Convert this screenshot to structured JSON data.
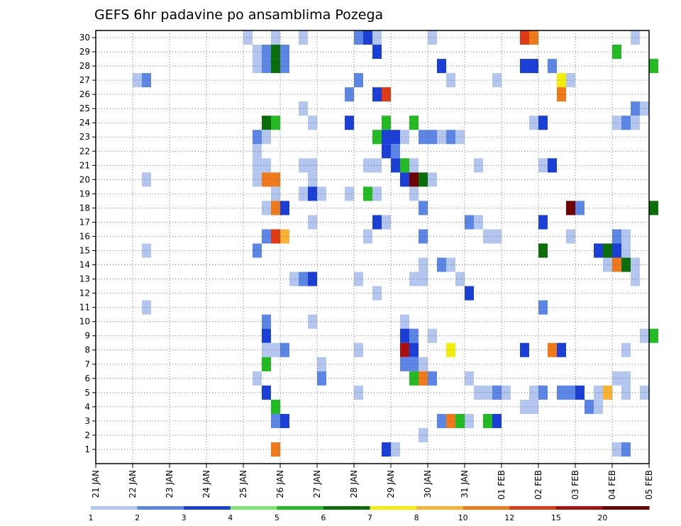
{
  "chart_data": {
    "type": "heatmap",
    "title": "GEFS 6hr padavine po ansamblima Pozega",
    "xlabel": "",
    "ylabel": "",
    "x_ticks": [
      "21 JAN",
      "22 JAN",
      "23 JAN",
      "24 JAN",
      "25 JAN",
      "26 JAN",
      "27 JAN",
      "28 JAN",
      "29 JAN",
      "30 JAN",
      "31 JAN",
      "01 FEB",
      "02 FEB",
      "03 FEB",
      "04 FEB",
      "05 FEB"
    ],
    "y_ticks": [
      "1",
      "2",
      "3",
      "4",
      "5",
      "6",
      "7",
      "8",
      "9",
      "10",
      "11",
      "12",
      "13",
      "14",
      "15",
      "16",
      "17",
      "18",
      "19",
      "20",
      "21",
      "22",
      "23",
      "24",
      "25",
      "26",
      "27",
      "28",
      "29",
      "30"
    ],
    "x_range": [
      "21 JAN 00Z",
      "05 FEB 00Z"
    ],
    "time_step_hours": 6,
    "y_range": [
      0,
      30
    ],
    "grid": true,
    "colorbar": {
      "labels": [
        "1",
        "2",
        "3",
        "4",
        "5",
        "6",
        "7",
        "8",
        "10",
        "12",
        "15",
        "20"
      ],
      "colors": [
        "#b3c6f0",
        "#5c86e6",
        "#1a3fd6",
        "#7de870",
        "#22bb22",
        "#0a6e0a",
        "#f2ee0a",
        "#f9b234",
        "#f07a1a",
        "#e03a14",
        "#a80f0f",
        "#6e0000"
      ]
    },
    "cells": [
      [
        30,
        "25 JAN 00Z",
        1
      ],
      [
        30,
        "25 JAN 18Z",
        1
      ],
      [
        30,
        "26 JAN 12Z",
        1
      ],
      [
        30,
        "28 JAN 00Z",
        2
      ],
      [
        30,
        "28 JAN 06Z",
        3
      ],
      [
        30,
        "28 JAN 12Z",
        1
      ],
      [
        30,
        "30 JAN 00Z",
        1
      ],
      [
        30,
        "01 FEB 12Z",
        12
      ],
      [
        30,
        "01 FEB 18Z",
        10
      ],
      [
        30,
        "04 FEB 12Z",
        1
      ],
      [
        29,
        "25 JAN 06Z",
        1
      ],
      [
        29,
        "25 JAN 12Z",
        2
      ],
      [
        29,
        "25 JAN 18Z",
        6
      ],
      [
        29,
        "26 JAN 00Z",
        2
      ],
      [
        29,
        "28 JAN 12Z",
        3
      ],
      [
        29,
        "04 FEB 00Z",
        5
      ],
      [
        28,
        "25 JAN 06Z",
        1
      ],
      [
        28,
        "25 JAN 12Z",
        2
      ],
      [
        28,
        "25 JAN 18Z",
        6
      ],
      [
        28,
        "26 JAN 00Z",
        2
      ],
      [
        28,
        "30 JAN 06Z",
        3
      ],
      [
        28,
        "01 FEB 12Z",
        3
      ],
      [
        28,
        "01 FEB 18Z",
        3
      ],
      [
        28,
        "02 FEB 06Z",
        2
      ],
      [
        28,
        "05 FEB 00Z",
        5
      ],
      [
        27,
        "22 JAN 00Z",
        1
      ],
      [
        27,
        "22 JAN 06Z",
        2
      ],
      [
        27,
        "28 JAN 00Z",
        2
      ],
      [
        27,
        "30 JAN 12Z",
        1
      ],
      [
        27,
        "31 JAN 18Z",
        1
      ],
      [
        27,
        "02 FEB 12Z",
        7
      ],
      [
        27,
        "02 FEB 18Z",
        1
      ],
      [
        26,
        "27 JAN 18Z",
        2
      ],
      [
        26,
        "28 JAN 12Z",
        3
      ],
      [
        26,
        "28 JAN 18Z",
        12
      ],
      [
        26,
        "02 FEB 12Z",
        10
      ],
      [
        25,
        "26 JAN 12Z",
        1
      ],
      [
        25,
        "04 FEB 12Z",
        2
      ],
      [
        25,
        "04 FEB 18Z",
        1
      ],
      [
        24,
        "25 JAN 12Z",
        6
      ],
      [
        24,
        "25 JAN 18Z",
        5
      ],
      [
        24,
        "26 JAN 18Z",
        1
      ],
      [
        24,
        "27 JAN 18Z",
        3
      ],
      [
        24,
        "28 JAN 18Z",
        5
      ],
      [
        24,
        "29 JAN 12Z",
        5
      ],
      [
        24,
        "01 FEB 18Z",
        1
      ],
      [
        24,
        "02 FEB 00Z",
        3
      ],
      [
        24,
        "04 FEB 00Z",
        1
      ],
      [
        24,
        "04 FEB 06Z",
        2
      ],
      [
        24,
        "04 FEB 12Z",
        1
      ],
      [
        23,
        "25 JAN 06Z",
        2
      ],
      [
        23,
        "25 JAN 12Z",
        1
      ],
      [
        23,
        "28 JAN 12Z",
        5
      ],
      [
        23,
        "28 JAN 18Z",
        3
      ],
      [
        23,
        "29 JAN 00Z",
        3
      ],
      [
        23,
        "29 JAN 06Z",
        1
      ],
      [
        23,
        "29 JAN 18Z",
        2
      ],
      [
        23,
        "30 JAN 00Z",
        2
      ],
      [
        23,
        "30 JAN 06Z",
        1
      ],
      [
        23,
        "30 JAN 12Z",
        2
      ],
      [
        23,
        "30 JAN 18Z",
        1
      ],
      [
        22,
        "25 JAN 06Z",
        1
      ],
      [
        22,
        "28 JAN 18Z",
        3
      ],
      [
        22,
        "29 JAN 00Z",
        2
      ],
      [
        21,
        "25 JAN 06Z",
        1
      ],
      [
        21,
        "25 JAN 12Z",
        1
      ],
      [
        21,
        "26 JAN 12Z",
        1
      ],
      [
        21,
        "26 JAN 18Z",
        1
      ],
      [
        21,
        "28 JAN 06Z",
        1
      ],
      [
        21,
        "28 JAN 12Z",
        1
      ],
      [
        21,
        "29 JAN 00Z",
        3
      ],
      [
        21,
        "29 JAN 06Z",
        5
      ],
      [
        21,
        "29 JAN 12Z",
        1
      ],
      [
        21,
        "31 JAN 06Z",
        1
      ],
      [
        21,
        "02 FEB 00Z",
        1
      ],
      [
        21,
        "02 FEB 06Z",
        3
      ],
      [
        20,
        "22 JAN 06Z",
        1
      ],
      [
        20,
        "25 JAN 06Z",
        1
      ],
      [
        20,
        "25 JAN 12Z",
        10
      ],
      [
        20,
        "25 JAN 18Z",
        10
      ],
      [
        20,
        "26 JAN 18Z",
        1
      ],
      [
        20,
        "29 JAN 06Z",
        3
      ],
      [
        20,
        "29 JAN 12Z",
        20
      ],
      [
        20,
        "29 JAN 18Z",
        6
      ],
      [
        20,
        "30 JAN 00Z",
        1
      ],
      [
        19,
        "25 JAN 18Z",
        1
      ],
      [
        19,
        "26 JAN 12Z",
        1
      ],
      [
        19,
        "26 JAN 18Z",
        3
      ],
      [
        19,
        "27 JAN 00Z",
        1
      ],
      [
        19,
        "27 JAN 18Z",
        1
      ],
      [
        19,
        "28 JAN 06Z",
        5
      ],
      [
        19,
        "28 JAN 12Z",
        1
      ],
      [
        19,
        "29 JAN 12Z",
        1
      ],
      [
        18,
        "25 JAN 12Z",
        1
      ],
      [
        18,
        "25 JAN 18Z",
        10
      ],
      [
        18,
        "26 JAN 00Z",
        3
      ],
      [
        18,
        "29 JAN 18Z",
        2
      ],
      [
        18,
        "02 FEB 18Z",
        20
      ],
      [
        18,
        "03 FEB 00Z",
        2
      ],
      [
        18,
        "05 FEB 00Z",
        6
      ],
      [
        17,
        "26 JAN 18Z",
        1
      ],
      [
        17,
        "28 JAN 12Z",
        3
      ],
      [
        17,
        "28 JAN 18Z",
        1
      ],
      [
        17,
        "31 JAN 00Z",
        2
      ],
      [
        17,
        "31 JAN 06Z",
        1
      ],
      [
        17,
        "02 FEB 00Z",
        3
      ],
      [
        16,
        "25 JAN 12Z",
        2
      ],
      [
        16,
        "25 JAN 18Z",
        12
      ],
      [
        16,
        "26 JAN 00Z",
        8
      ],
      [
        16,
        "28 JAN 06Z",
        1
      ],
      [
        16,
        "29 JAN 18Z",
        2
      ],
      [
        16,
        "31 JAN 12Z",
        1
      ],
      [
        16,
        "31 JAN 18Z",
        1
      ],
      [
        16,
        "02 FEB 18Z",
        1
      ],
      [
        16,
        "04 FEB 00Z",
        2
      ],
      [
        16,
        "04 FEB 06Z",
        1
      ],
      [
        15,
        "22 JAN 06Z",
        1
      ],
      [
        15,
        "25 JAN 06Z",
        2
      ],
      [
        15,
        "02 FEB 00Z",
        6
      ],
      [
        15,
        "03 FEB 12Z",
        3
      ],
      [
        15,
        "03 FEB 18Z",
        6
      ],
      [
        15,
        "04 FEB 00Z",
        3
      ],
      [
        15,
        "04 FEB 06Z",
        1
      ],
      [
        14,
        "29 JAN 18Z",
        1
      ],
      [
        14,
        "30 JAN 06Z",
        2
      ],
      [
        14,
        "30 JAN 12Z",
        1
      ],
      [
        14,
        "03 FEB 18Z",
        1
      ],
      [
        14,
        "04 FEB 00Z",
        10
      ],
      [
        14,
        "04 FEB 06Z",
        6
      ],
      [
        14,
        "04 FEB 12Z",
        1
      ],
      [
        13,
        "26 JAN 06Z",
        1
      ],
      [
        13,
        "26 JAN 12Z",
        2
      ],
      [
        13,
        "26 JAN 18Z",
        3
      ],
      [
        13,
        "28 JAN 00Z",
        1
      ],
      [
        13,
        "29 JAN 12Z",
        1
      ],
      [
        13,
        "29 JAN 18Z",
        1
      ],
      [
        13,
        "30 JAN 18Z",
        1
      ],
      [
        13,
        "04 FEB 12Z",
        1
      ],
      [
        12,
        "28 JAN 12Z",
        1
      ],
      [
        12,
        "31 JAN 00Z",
        3
      ],
      [
        11,
        "22 JAN 06Z",
        1
      ],
      [
        11,
        "02 FEB 00Z",
        2
      ],
      [
        10,
        "25 JAN 12Z",
        2
      ],
      [
        10,
        "26 JAN 18Z",
        1
      ],
      [
        10,
        "29 JAN 06Z",
        1
      ],
      [
        9,
        "25 JAN 12Z",
        3
      ],
      [
        9,
        "29 JAN 06Z",
        3
      ],
      [
        9,
        "29 JAN 12Z",
        2
      ],
      [
        9,
        "30 JAN 00Z",
        1
      ],
      [
        9,
        "04 FEB 18Z",
        1
      ],
      [
        9,
        "05 FEB 00Z",
        5
      ],
      [
        8,
        "25 JAN 12Z",
        1
      ],
      [
        8,
        "25 JAN 18Z",
        1
      ],
      [
        8,
        "26 JAN 00Z",
        2
      ],
      [
        8,
        "28 JAN 00Z",
        1
      ],
      [
        8,
        "29 JAN 06Z",
        15
      ],
      [
        8,
        "29 JAN 12Z",
        3
      ],
      [
        8,
        "30 JAN 12Z",
        7
      ],
      [
        8,
        "01 FEB 12Z",
        3
      ],
      [
        8,
        "02 FEB 06Z",
        10
      ],
      [
        8,
        "02 FEB 12Z",
        3
      ],
      [
        8,
        "04 FEB 06Z",
        1
      ],
      [
        7,
        "25 JAN 12Z",
        5
      ],
      [
        7,
        "27 JAN 00Z",
        1
      ],
      [
        7,
        "29 JAN 06Z",
        2
      ],
      [
        7,
        "29 JAN 12Z",
        2
      ],
      [
        7,
        "29 JAN 18Z",
        1
      ],
      [
        6,
        "25 JAN 06Z",
        1
      ],
      [
        6,
        "27 JAN 00Z",
        2
      ],
      [
        6,
        "29 JAN 12Z",
        5
      ],
      [
        6,
        "29 JAN 18Z",
        10
      ],
      [
        6,
        "30 JAN 00Z",
        2
      ],
      [
        6,
        "31 JAN 00Z",
        1
      ],
      [
        6,
        "04 FEB 00Z",
        1
      ],
      [
        6,
        "04 FEB 06Z",
        1
      ],
      [
        5,
        "25 JAN 12Z",
        3
      ],
      [
        5,
        "28 JAN 00Z",
        1
      ],
      [
        5,
        "31 JAN 06Z",
        1
      ],
      [
        5,
        "31 JAN 12Z",
        1
      ],
      [
        5,
        "31 JAN 18Z",
        2
      ],
      [
        5,
        "01 FEB 00Z",
        1
      ],
      [
        5,
        "01 FEB 18Z",
        1
      ],
      [
        5,
        "02 FEB 00Z",
        2
      ],
      [
        5,
        "02 FEB 12Z",
        2
      ],
      [
        5,
        "02 FEB 18Z",
        2
      ],
      [
        5,
        "03 FEB 00Z",
        3
      ],
      [
        5,
        "03 FEB 12Z",
        1
      ],
      [
        5,
        "03 FEB 18Z",
        8
      ],
      [
        5,
        "04 FEB 06Z",
        1
      ],
      [
        5,
        "04 FEB 18Z",
        1
      ],
      [
        4,
        "25 JAN 18Z",
        5
      ],
      [
        4,
        "01 FEB 12Z",
        1
      ],
      [
        4,
        "01 FEB 18Z",
        1
      ],
      [
        4,
        "03 FEB 06Z",
        2
      ],
      [
        4,
        "03 FEB 12Z",
        1
      ],
      [
        3,
        "25 JAN 18Z",
        2
      ],
      [
        3,
        "26 JAN 00Z",
        3
      ],
      [
        3,
        "30 JAN 06Z",
        2
      ],
      [
        3,
        "30 JAN 12Z",
        10
      ],
      [
        3,
        "30 JAN 18Z",
        5
      ],
      [
        3,
        "31 JAN 00Z",
        1
      ],
      [
        3,
        "31 JAN 12Z",
        5
      ],
      [
        3,
        "31 JAN 18Z",
        3
      ],
      [
        2,
        "29 JAN 18Z",
        1
      ],
      [
        1,
        "25 JAN 18Z",
        10
      ],
      [
        1,
        "28 JAN 18Z",
        3
      ],
      [
        1,
        "29 JAN 00Z",
        1
      ],
      [
        1,
        "04 FEB 00Z",
        1
      ],
      [
        1,
        "04 FEB 06Z",
        2
      ]
    ]
  }
}
